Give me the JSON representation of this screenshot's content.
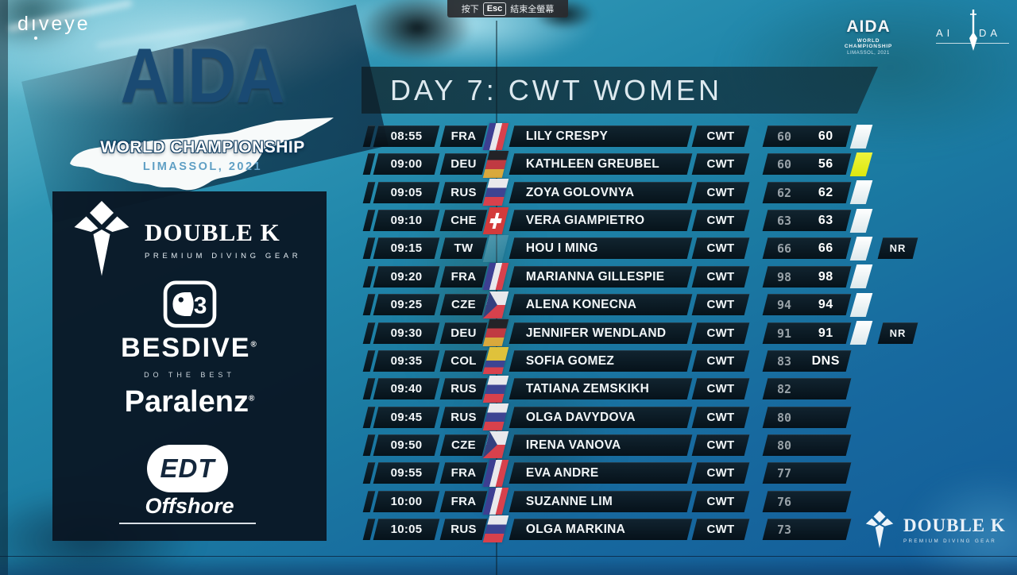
{
  "fullscreen_toast": {
    "press_label": "按下",
    "key": "Esc",
    "action_label": "結束全螢幕"
  },
  "watermark": {
    "label_start": "d",
    "label_i": "ı",
    "label_end": "veye"
  },
  "event_logo": {
    "title": "AIDA",
    "subtitle": "WORLD CHAMPIONSHIP",
    "location": "LIMASSOL, 2021"
  },
  "header": {
    "title": "DAY 7: CWT WOMEN"
  },
  "mini_logo": {
    "title": "AIDA",
    "subtitle": "WORLD CHAMPIONSHIP",
    "location": "LIMASSOL, 2021"
  },
  "aida_emblem": {
    "left_letters": "A I",
    "right_letters": "D A"
  },
  "sponsors": {
    "double_k": {
      "name": "DOUBLE K",
      "tagline": "PREMIUM DIVING GEAR"
    },
    "besdive": {
      "name": "BESDIVE",
      "reg_mark": "®",
      "tagline": "DO THE BEST"
    },
    "paralenz": {
      "name": "Paralenz",
      "reg_mark": "®"
    },
    "edt": {
      "name": "EDT",
      "subname": "Offshore"
    }
  },
  "footer_logo": {
    "name": "DOUBLE K",
    "tagline": "PREMIUM DIVING GEAR"
  },
  "colors": {
    "water_teal": "#1e7fa4",
    "row_background": "#0a1822",
    "card_white": "#f6fbff",
    "card_yellow": "#e7ee1f",
    "aida_blue": "#1a4a73",
    "limassol_blue": "#5f9fc4",
    "announced_gray": "#98a1a7"
  },
  "schedule": {
    "rows": [
      {
        "time": "08:55",
        "country": "FRA",
        "flag": "fra",
        "name": "LILY CRESPY",
        "discipline": "CWT",
        "announced": "60",
        "result": "60",
        "card": "white",
        "badge": ""
      },
      {
        "time": "09:00",
        "country": "DEU",
        "flag": "deu",
        "name": "KATHLEEN GREUBEL",
        "discipline": "CWT",
        "announced": "60",
        "result": "56",
        "card": "yellow",
        "badge": ""
      },
      {
        "time": "09:05",
        "country": "RUS",
        "flag": "rus",
        "name": "ZOYA GOLOVNYA",
        "discipline": "CWT",
        "announced": "62",
        "result": "62",
        "card": "white",
        "badge": ""
      },
      {
        "time": "09:10",
        "country": "CHE",
        "flag": "che",
        "name": "VERA GIAMPIETRO",
        "discipline": "CWT",
        "announced": "63",
        "result": "63",
        "card": "white",
        "badge": ""
      },
      {
        "time": "09:15",
        "country": "TW",
        "flag": "tw",
        "name": "HOU I MING",
        "discipline": "CWT",
        "announced": "66",
        "result": "66",
        "card": "white",
        "badge": "NR"
      },
      {
        "time": "09:20",
        "country": "FRA",
        "flag": "fra",
        "name": "MARIANNA GILLESPIE",
        "discipline": "CWT",
        "announced": "98",
        "result": "98",
        "card": "white",
        "badge": ""
      },
      {
        "time": "09:25",
        "country": "CZE",
        "flag": "cze",
        "name": "ALENA KONECNA",
        "discipline": "CWT",
        "announced": "94",
        "result": "94",
        "card": "white",
        "badge": ""
      },
      {
        "time": "09:30",
        "country": "DEU",
        "flag": "deu",
        "name": "JENNIFER WENDLAND",
        "discipline": "CWT",
        "announced": "91",
        "result": "91",
        "card": "white",
        "badge": "NR"
      },
      {
        "time": "09:35",
        "country": "COL",
        "flag": "col",
        "name": "SOFIA GOMEZ",
        "discipline": "CWT",
        "announced": "83",
        "result": "DNS",
        "card": "",
        "badge": ""
      },
      {
        "time": "09:40",
        "country": "RUS",
        "flag": "rus",
        "name": "TATIANA ZEMSKIKH",
        "discipline": "CWT",
        "announced": "82",
        "result": "",
        "card": "",
        "badge": ""
      },
      {
        "time": "09:45",
        "country": "RUS",
        "flag": "rus",
        "name": "OLGA DAVYDOVA",
        "discipline": "CWT",
        "announced": "80",
        "result": "",
        "card": "",
        "badge": ""
      },
      {
        "time": "09:50",
        "country": "CZE",
        "flag": "cze",
        "name": "IRENA VANOVA",
        "discipline": "CWT",
        "announced": "80",
        "result": "",
        "card": "",
        "badge": ""
      },
      {
        "time": "09:55",
        "country": "FRA",
        "flag": "fra",
        "name": "EVA ANDRE",
        "discipline": "CWT",
        "announced": "77",
        "result": "",
        "card": "",
        "badge": ""
      },
      {
        "time": "10:00",
        "country": "FRA",
        "flag": "fra",
        "name": "SUZANNE LIM",
        "discipline": "CWT",
        "announced": "76",
        "result": "",
        "card": "",
        "badge": ""
      },
      {
        "time": "10:05",
        "country": "RUS",
        "flag": "rus",
        "name": "OLGA MARKINA",
        "discipline": "CWT",
        "announced": "73",
        "result": "",
        "card": "",
        "badge": ""
      }
    ]
  }
}
